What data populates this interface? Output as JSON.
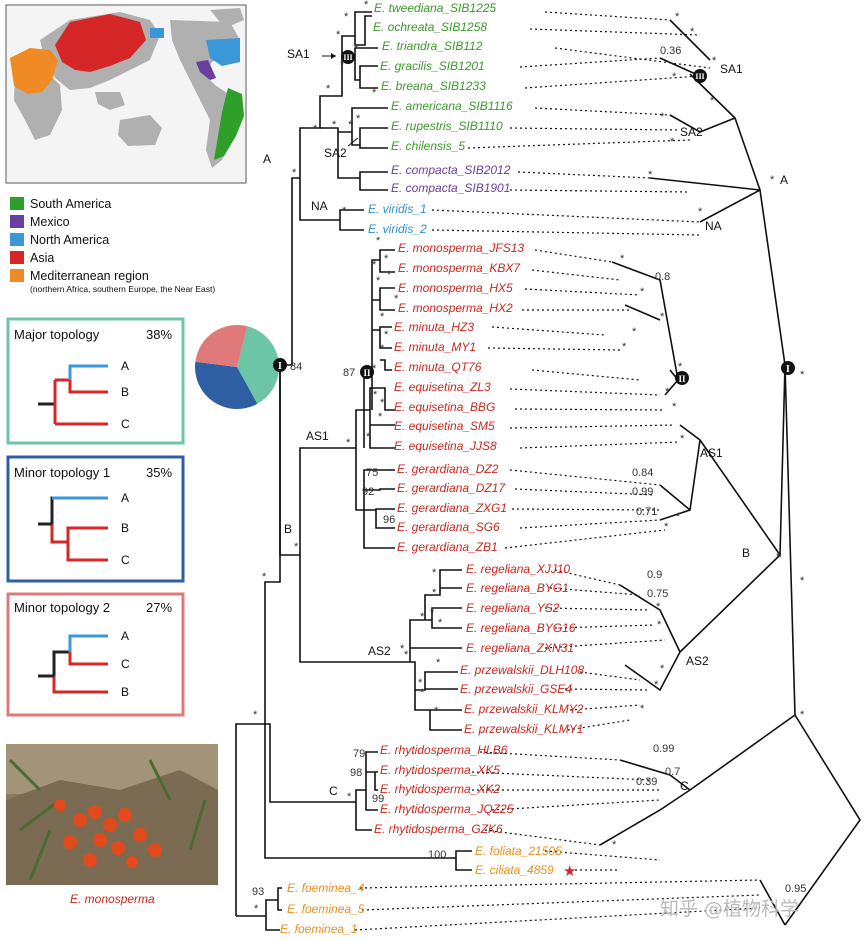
{
  "legend": {
    "items": [
      {
        "label": "South America",
        "color": "#2ea02a"
      },
      {
        "label": "Mexico",
        "color": "#6a3ea1"
      },
      {
        "label": "North America",
        "color": "#3a98d8"
      },
      {
        "label": "Asia",
        "color": "#d62728"
      },
      {
        "label": "Mediterranean region",
        "color": "#f08a24"
      }
    ],
    "note": "(northern Africa, southern Europe, the Near East)"
  },
  "topologies": [
    {
      "title": "Major topology",
      "percent": "38%",
      "tips": [
        "A",
        "B",
        "C"
      ],
      "border": "#6cc5a5"
    },
    {
      "title": "Minor topology 1",
      "percent": "35%",
      "tips": [
        "A",
        "B",
        "C"
      ],
      "border": "#2f5fa3"
    },
    {
      "title": "Minor topology 2",
      "percent": "27%",
      "tips": [
        "A",
        "C",
        "B"
      ],
      "border": "#e07a7a"
    }
  ],
  "pie": [
    {
      "label": "Major topology",
      "value": 38,
      "color": "#6cc5a5"
    },
    {
      "label": "Minor topology 1",
      "value": 35,
      "color": "#2f5fa3"
    },
    {
      "label": "Minor topology 2",
      "value": 27,
      "color": "#e07a7a"
    }
  ],
  "photo_caption": "E. monosperma",
  "taxa": [
    {
      "name": "E. tweediana_SIB1225",
      "color": "#3a9a2a"
    },
    {
      "name": "E. ochreata_SIB1258",
      "color": "#3a9a2a"
    },
    {
      "name": "E. triandra_SIB112",
      "color": "#3a9a2a"
    },
    {
      "name": "E. gracilis_SIB1201",
      "color": "#3a9a2a"
    },
    {
      "name": "E. breana_SIB1233",
      "color": "#3a9a2a"
    },
    {
      "name": "E. americana_SIB1116",
      "color": "#3a9a2a"
    },
    {
      "name": "E. rupestris_SIB1110",
      "color": "#3a9a2a"
    },
    {
      "name": "E. chilensis_5",
      "color": "#3a9a2a"
    },
    {
      "name": "E. compacta_SIB2012",
      "color": "#6a3ea1"
    },
    {
      "name": "E. compacta_SIB1901",
      "color": "#6a3ea1"
    },
    {
      "name": "E. viridis_1",
      "color": "#2f8fd0"
    },
    {
      "name": "E. viridis_2",
      "color": "#2f8fd0"
    },
    {
      "name": "E. monosperma_JFS13",
      "color": "#c8281e"
    },
    {
      "name": "E. monosperma_KBX7",
      "color": "#c8281e"
    },
    {
      "name": "E. monosperma_HX5",
      "color": "#c8281e"
    },
    {
      "name": "E. monosperma_HX2",
      "color": "#c8281e"
    },
    {
      "name": "E. minuta_HZ3",
      "color": "#c8281e"
    },
    {
      "name": "E. minuta_MY1",
      "color": "#c8281e"
    },
    {
      "name": "E. minuta_QT76",
      "color": "#c8281e"
    },
    {
      "name": "E. equisetina_ZL3",
      "color": "#c8281e"
    },
    {
      "name": "E. equisetina_BBG",
      "color": "#c8281e"
    },
    {
      "name": "E. equisetina_SM5",
      "color": "#c8281e"
    },
    {
      "name": "E. equisetina_JJS8",
      "color": "#c8281e"
    },
    {
      "name": "E. gerardiana_DZ2",
      "color": "#c8281e"
    },
    {
      "name": "E. gerardiana_DZ17",
      "color": "#c8281e"
    },
    {
      "name": "E. gerardiana_ZXG1",
      "color": "#c8281e"
    },
    {
      "name": "E. gerardiana_SG6",
      "color": "#c8281e"
    },
    {
      "name": "E. gerardiana_ZB1",
      "color": "#c8281e"
    },
    {
      "name": "E. regeliana_XJJ10",
      "color": "#c8281e"
    },
    {
      "name": "E. regeliana_BYG1",
      "color": "#c8281e"
    },
    {
      "name": "E. regeliana_YS2",
      "color": "#c8281e"
    },
    {
      "name": "E. regeliana_BYG16",
      "color": "#c8281e"
    },
    {
      "name": "E. regeliana_ZXN31",
      "color": "#c8281e"
    },
    {
      "name": "E. przewalskii_DLH108",
      "color": "#c8281e"
    },
    {
      "name": "E. przewalskii_GSE4",
      "color": "#c8281e"
    },
    {
      "name": "E. przewalskii_KLMY2",
      "color": "#c8281e"
    },
    {
      "name": "E. przewalskii_KLMY1",
      "color": "#c8281e"
    },
    {
      "name": "E. rhytidosperma_HLB6",
      "color": "#c8281e"
    },
    {
      "name": "E. rhytidosperma_XK5",
      "color": "#c8281e"
    },
    {
      "name": "E. rhytidosperma_XK2",
      "color": "#c8281e"
    },
    {
      "name": "E. rhytidosperma_JQZ25",
      "color": "#c8281e"
    },
    {
      "name": "E. rhytidosperma_GZK6",
      "color": "#c8281e"
    },
    {
      "name": "E. foliata_21505",
      "color": "#e8901e"
    },
    {
      "name": "E. ciliata_4859",
      "color": "#e8901e"
    },
    {
      "name": "E. foeminea_4",
      "color": "#e8901e"
    },
    {
      "name": "E. foeminea_5",
      "color": "#e8901e"
    },
    {
      "name": "E. foeminea_1",
      "color": "#e8901e"
    }
  ],
  "clade_labels": [
    "SA1",
    "SA2",
    "NA",
    "A",
    "B",
    "AS1",
    "AS2",
    "C"
  ],
  "node_markers": [
    "I",
    "II",
    "III"
  ],
  "support_values": [
    "84",
    "87",
    "75",
    "92",
    "96",
    "79",
    "98",
    "99",
    "100",
    "93",
    "0.36",
    "0.8",
    "0.84",
    "0.99",
    "0.71",
    "0.9",
    "0.75",
    "0.99",
    "0.7",
    "0.39",
    "0.95"
  ],
  "support_star": "*",
  "watermark": "知乎 @植物科学"
}
